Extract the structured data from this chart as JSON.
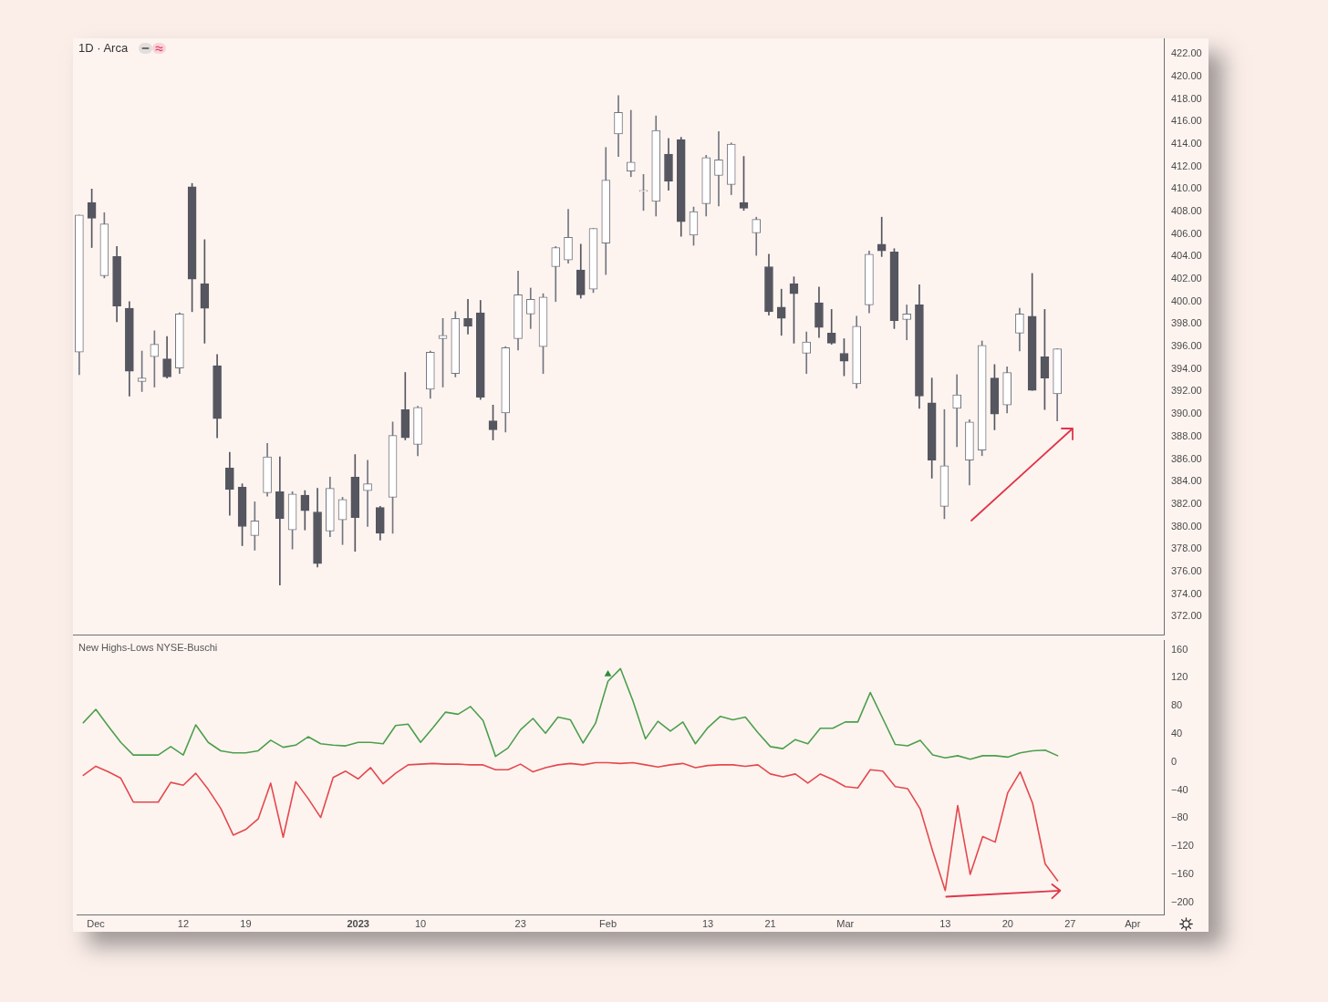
{
  "chart_data": [
    {
      "type": "candlestick",
      "title": "1D · Arca",
      "tick_labels": "y",
      "categories": [
        null,
        null,
        null,
        null,
        null,
        null,
        null,
        null,
        null,
        null,
        null,
        null,
        null,
        null,
        null,
        null,
        null,
        null,
        null,
        null,
        null,
        null,
        null,
        null,
        null,
        null,
        null,
        null,
        null,
        null,
        null,
        null,
        null,
        null,
        null,
        null,
        null,
        null,
        null,
        null,
        null,
        null,
        null,
        null,
        null,
        null,
        null,
        null,
        null,
        null,
        null,
        null,
        null,
        null,
        null,
        null,
        null,
        null,
        null,
        null,
        null,
        null,
        null,
        null,
        null,
        null,
        null,
        null,
        null,
        null,
        null,
        null,
        null,
        null,
        null,
        null,
        null,
        null,
        null,
        null,
        null,
        null,
        null,
        null,
        null,
        null,
        null
      ],
      "ohlc": [
        [
          395.5,
          407.7,
          393.5,
          407.7
        ],
        [
          408.8,
          410.0,
          404.8,
          407.4
        ],
        [
          402.3,
          407.9,
          402.1,
          406.9
        ],
        [
          404.0,
          404.9,
          398.2,
          399.6
        ],
        [
          399.4,
          400.0,
          391.6,
          393.8
        ],
        [
          392.9,
          395.6,
          392.0,
          393.2
        ],
        [
          395.1,
          397.4,
          392.4,
          396.2
        ],
        [
          394.9,
          396.9,
          393.2,
          393.3
        ],
        [
          394.1,
          399.0,
          393.6,
          398.9
        ],
        [
          410.2,
          410.5,
          399.1,
          402.0
        ],
        [
          401.6,
          405.5,
          396.3,
          399.4
        ],
        [
          394.3,
          395.3,
          387.9,
          389.6
        ],
        [
          385.2,
          386.6,
          381.0,
          383.3
        ],
        [
          383.5,
          383.8,
          378.3,
          380.0
        ],
        [
          379.2,
          382.2,
          377.9,
          380.5
        ],
        [
          383.0,
          387.4,
          382.7,
          386.2
        ],
        [
          383.1,
          386.2,
          374.8,
          380.7
        ],
        [
          379.7,
          383.1,
          378.0,
          382.9
        ],
        [
          382.8,
          383.2,
          379.7,
          381.4
        ],
        [
          381.3,
          383.4,
          376.4,
          376.7
        ],
        [
          379.6,
          384.4,
          379.1,
          383.4
        ],
        [
          380.6,
          382.6,
          378.4,
          382.4
        ],
        [
          384.4,
          386.4,
          377.8,
          380.8
        ],
        [
          383.2,
          385.9,
          380.0,
          383.8
        ],
        [
          381.7,
          381.8,
          378.8,
          379.4
        ],
        [
          382.6,
          389.3,
          379.4,
          388.1
        ],
        [
          390.4,
          393.7,
          387.7,
          387.9
        ],
        [
          387.3,
          390.7,
          386.3,
          390.6
        ],
        [
          392.2,
          395.6,
          391.4,
          395.5
        ],
        [
          396.7,
          398.5,
          392.4,
          397.0
        ],
        [
          393.6,
          399.1,
          393.3,
          398.5
        ],
        [
          398.5,
          400.2,
          397.1,
          397.8
        ],
        [
          399.0,
          400.1,
          391.3,
          391.5
        ],
        [
          389.4,
          390.8,
          387.7,
          388.6
        ],
        [
          390.1,
          396.0,
          388.4,
          395.9
        ],
        [
          396.7,
          402.7,
          395.7,
          400.6
        ],
        [
          398.9,
          401.2,
          397.6,
          400.2
        ],
        [
          396.0,
          400.7,
          393.6,
          400.4
        ],
        [
          403.1,
          404.9,
          400.0,
          404.8
        ],
        [
          403.7,
          408.2,
          403.4,
          405.7
        ],
        [
          402.8,
          405.1,
          400.3,
          400.6
        ],
        [
          401.1,
          406.5,
          400.8,
          406.5
        ],
        [
          405.2,
          413.7,
          402.4,
          410.8
        ],
        [
          414.9,
          418.3,
          412.9,
          416.8
        ],
        [
          411.6,
          417.0,
          411.1,
          412.4
        ],
        [
          409.8,
          411.3,
          408.1,
          409.8
        ],
        [
          408.9,
          416.5,
          407.6,
          415.2
        ],
        [
          413.1,
          414.5,
          409.9,
          410.7
        ],
        [
          414.4,
          414.6,
          405.8,
          407.1
        ],
        [
          405.9,
          408.4,
          405.0,
          408.0
        ],
        [
          408.7,
          413.0,
          407.6,
          412.8
        ],
        [
          411.2,
          415.1,
          408.5,
          412.6
        ],
        [
          410.4,
          414.1,
          409.5,
          414.0
        ],
        [
          408.8,
          412.9,
          408.1,
          408.3
        ],
        [
          406.1,
          407.5,
          404.1,
          407.3
        ],
        [
          403.1,
          404.2,
          398.8,
          399.1
        ],
        [
          399.5,
          401.1,
          397.0,
          398.5
        ],
        [
          401.6,
          402.2,
          396.3,
          400.7
        ],
        [
          395.4,
          397.3,
          393.6,
          396.4
        ],
        [
          399.9,
          401.3,
          396.8,
          397.7
        ],
        [
          397.2,
          399.3,
          396.2,
          396.3
        ],
        [
          395.4,
          396.7,
          393.4,
          394.7
        ],
        [
          392.7,
          398.7,
          392.3,
          397.8
        ],
        [
          399.7,
          404.5,
          399.0,
          404.2
        ],
        [
          405.1,
          407.5,
          404.0,
          404.5
        ],
        [
          404.4,
          404.7,
          397.6,
          398.3
        ],
        [
          398.4,
          399.7,
          396.6,
          398.9
        ],
        [
          399.7,
          401.5,
          390.5,
          391.6
        ],
        [
          391.0,
          393.2,
          384.3,
          385.9
        ],
        [
          381.8,
          390.4,
          380.7,
          385.4
        ],
        [
          390.5,
          393.5,
          387.1,
          391.7
        ],
        [
          385.9,
          389.5,
          383.7,
          389.3
        ],
        [
          386.8,
          396.5,
          386.3,
          396.1
        ],
        [
          393.2,
          394.4,
          388.6,
          390.0
        ],
        [
          390.8,
          394.2,
          390.1,
          393.7
        ],
        [
          397.2,
          399.4,
          395.6,
          398.9
        ],
        [
          398.7,
          402.5,
          392.1,
          392.1
        ],
        [
          395.1,
          399.3,
          390.4,
          393.2
        ],
        [
          391.8,
          395.8,
          389.4,
          395.8
        ],
        null,
        null,
        null,
        null,
        null,
        null,
        null,
        null
      ],
      "colors": [
        "#737680",
        "#55565f",
        "#737680",
        "#55565f",
        "#55565f",
        "#737680",
        "#737680",
        "#55565f",
        "#737680",
        "#55565f",
        "#55565f",
        "#55565f",
        "#55565f",
        "#55565f",
        "#737680",
        "#737680",
        "#55565f",
        "#737680",
        "#55565f",
        "#55565f",
        "#737680",
        "#737680",
        "#55565f",
        "#737680",
        "#55565f",
        "#737680",
        "#55565f",
        "#737680",
        "#737680",
        "#737680",
        "#737680",
        "#55565f",
        "#55565f",
        "#55565f",
        "#737680",
        "#737680",
        "#737680",
        "#737680",
        "#737680",
        "#737680",
        "#55565f",
        "#737680",
        "#737680",
        "#737680",
        "#737680",
        "#737680",
        "#737680",
        "#55565f",
        "#55565f",
        "#737680",
        "#737680",
        "#737680",
        "#737680",
        "#55565f",
        "#737680",
        "#55565f",
        "#55565f",
        "#55565f",
        "#737680",
        "#55565f",
        "#55565f",
        "#55565f",
        "#737680",
        "#737680",
        "#55565f",
        "#55565f",
        "#737680",
        "#55565f",
        "#55565f",
        "#737680",
        "#737680",
        "#737680",
        "#737680",
        "#55565f",
        "#737680",
        "#737680",
        "#55565f",
        "#55565f",
        "#737680",
        null,
        null,
        null,
        null,
        null,
        null,
        null,
        null
      ],
      "ylim": [
        370.4,
        423.4
      ],
      "yticks": [
        {
          "value": 372,
          "label": "372.00"
        },
        {
          "value": 374,
          "label": "374.00"
        },
        {
          "value": 376,
          "label": "376.00"
        },
        {
          "value": 378,
          "label": "378.00"
        },
        {
          "value": 380,
          "label": "380.00"
        },
        {
          "value": 382,
          "label": "382.00"
        },
        {
          "value": 384,
          "label": "384.00"
        },
        {
          "value": 386,
          "label": "386.00"
        },
        {
          "value": 388,
          "label": "388.00"
        },
        {
          "value": 390,
          "label": "390.00"
        },
        {
          "value": 392,
          "label": "392.00"
        },
        {
          "value": 394,
          "label": "394.00"
        },
        {
          "value": 396,
          "label": "396.00"
        },
        {
          "value": 398,
          "label": "398.00"
        },
        {
          "value": 400,
          "label": "400.00"
        },
        {
          "value": 402,
          "label": "402.00"
        },
        {
          "value": 404,
          "label": "404.00"
        },
        {
          "value": 406,
          "label": "406.00"
        },
        {
          "value": 408,
          "label": "408.00"
        },
        {
          "value": 410,
          "label": "410.00"
        },
        {
          "value": 412,
          "label": "412.00"
        },
        {
          "value": 414,
          "label": "414.00"
        },
        {
          "value": 416,
          "label": "416.00"
        },
        {
          "value": 418,
          "label": "418.00"
        },
        {
          "value": 420,
          "label": "420.00"
        },
        {
          "value": 422,
          "label": "422.00"
        }
      ]
    },
    {
      "type": "line",
      "title": "New Highs-Lows NYSE-Buschi",
      "categories": [
        null,
        "Dec",
        null,
        null,
        null,
        null,
        null,
        null,
        "12",
        null,
        null,
        null,
        null,
        "19",
        null,
        null,
        null,
        null,
        null,
        null,
        null,
        null,
        "2023",
        null,
        null,
        null,
        null,
        "10",
        null,
        null,
        null,
        null,
        null,
        null,
        null,
        "23",
        null,
        null,
        null,
        null,
        null,
        null,
        "Feb",
        null,
        null,
        null,
        null,
        null,
        null,
        null,
        "13",
        null,
        null,
        null,
        null,
        "21",
        null,
        null,
        null,
        null,
        null,
        "Mar",
        null,
        null,
        null,
        null,
        null,
        null,
        null,
        "13",
        null,
        null,
        null,
        null,
        "20",
        null,
        null,
        null,
        null,
        "27",
        null,
        null,
        null,
        null,
        "Apr",
        null,
        null
      ],
      "series": [
        {
          "color": "#4c9f4c",
          "values": [
            56,
            75,
            51,
            28,
            10,
            10,
            10,
            22,
            10,
            53,
            28,
            16,
            13,
            13,
            16,
            31,
            21,
            24,
            36,
            26,
            24,
            23,
            28,
            28,
            26,
            52,
            54,
            28,
            49,
            71,
            68,
            79,
            59,
            8,
            20,
            46,
            62,
            41,
            64,
            60,
            27,
            55,
            115,
            133,
            87,
            33,
            58,
            44,
            57,
            26,
            49,
            65,
            60,
            64,
            42,
            22,
            19,
            32,
            26,
            48,
            48,
            57,
            57,
            99,
            62,
            25,
            23,
            31,
            10,
            6,
            9,
            4,
            9,
            9,
            7,
            13,
            16,
            17,
            9,
            null,
            null,
            null,
            null,
            null,
            null,
            null,
            null
          ]
        },
        {
          "color": "#e5484d",
          "values": [
            -19,
            -6,
            -14,
            -23,
            -57,
            -57,
            -57,
            -29,
            -33,
            -16,
            -39,
            -66,
            -104,
            -96,
            -81,
            -30,
            -107,
            -28,
            -52,
            -79,
            -22,
            -13,
            -24,
            -8,
            -31,
            -16,
            -4,
            -3,
            -2,
            -3,
            -3,
            -4,
            -4,
            -11,
            -11,
            -3,
            -14,
            -8,
            -4,
            -2,
            -4,
            -1,
            -1,
            -2,
            -1,
            -4,
            -7,
            -4,
            -2,
            -8,
            -5,
            -4,
            -4,
            -6,
            -4,
            -17,
            -21,
            -17,
            -30,
            -17,
            -25,
            -35,
            -37,
            -11,
            -13,
            -35,
            -38,
            -67,
            -127,
            -183,
            -62,
            -160,
            -106,
            -114,
            -44,
            -14,
            -59,
            -145,
            -169,
            null,
            null,
            null,
            null,
            null,
            null,
            null,
            null
          ]
        },
        {
          "type": "scatter",
          "color": "#2e8b3a",
          "marker": "triangle",
          "x": [
            "Feb"
          ],
          "values": [
            125
          ]
        }
      ],
      "ylim": [
        -217,
        173
      ],
      "yticks": [
        {
          "value": -200,
          "label": "−200"
        },
        {
          "value": -160,
          "label": "−160"
        },
        {
          "value": -120,
          "label": "−120"
        },
        {
          "value": -80,
          "label": "−80"
        },
        {
          "value": -40,
          "label": "−40"
        },
        0,
        40,
        80,
        120,
        160
      ]
    }
  ]
}
